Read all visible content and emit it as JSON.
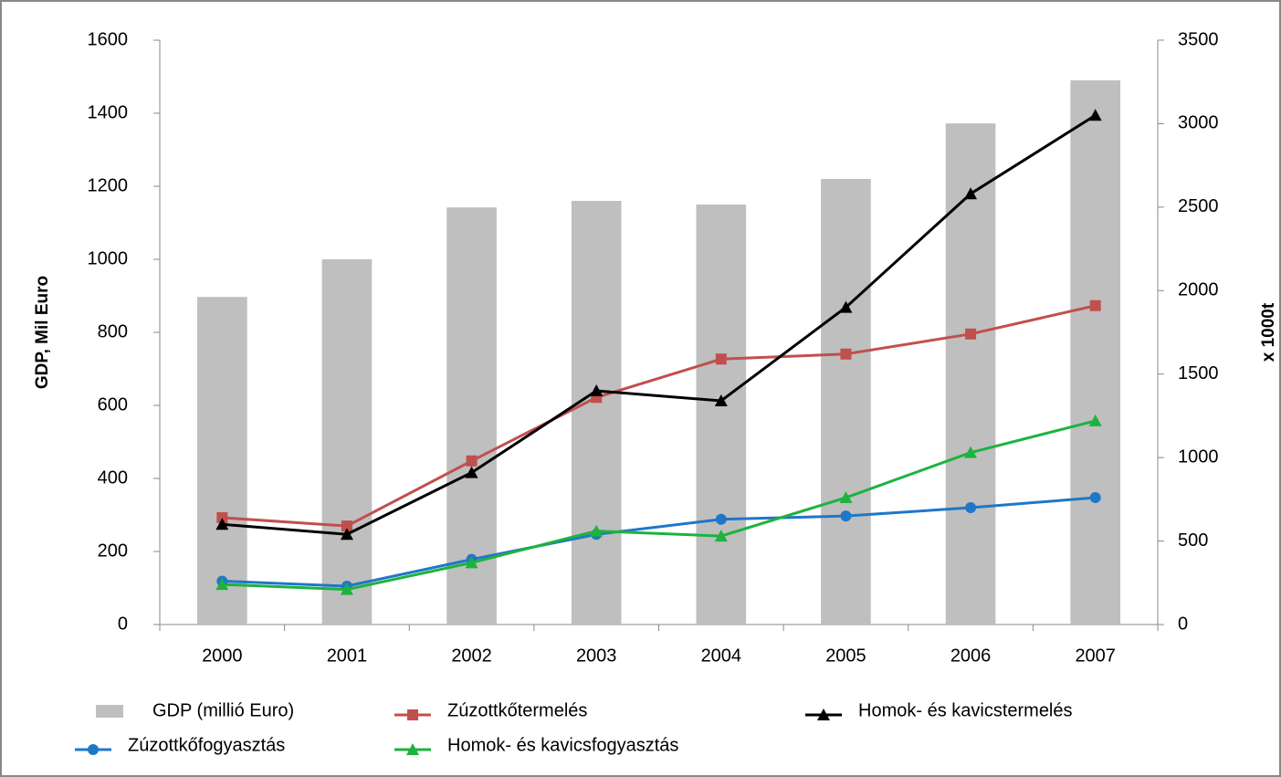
{
  "chart_data": {
    "type": "bar-line",
    "ylabel": "GDP, Mil Euro",
    "y2label": "x 1000t",
    "categories": [
      "2000",
      "2001",
      "2002",
      "2003",
      "2004",
      "2005",
      "2006",
      "2007"
    ],
    "ylim": [
      0,
      1600
    ],
    "yticks": [
      0,
      200,
      400,
      600,
      800,
      1000,
      1200,
      1400,
      1600
    ],
    "y2lim": [
      0,
      3500
    ],
    "y2ticks": [
      0,
      500,
      1000,
      1500,
      2000,
      2500,
      3000,
      3500
    ],
    "series": [
      {
        "name": "GDP (millió Euro)",
        "type": "bar",
        "color": "#bfbfbf",
        "values": [
          897,
          1000,
          1142,
          1160,
          1150,
          1220,
          1372,
          1490
        ]
      },
      {
        "name": "Zúzottkőtermelés",
        "type": "line",
        "marker": "square",
        "axis": "y2",
        "color": "#c0504d",
        "values": [
          640,
          590,
          980,
          1360,
          1590,
          1620,
          1740,
          1910
        ]
      },
      {
        "name": "Homok- és kavicstermelés",
        "type": "line",
        "marker": "triangle",
        "axis": "y2",
        "color": "#000000",
        "values": [
          600,
          540,
          910,
          1400,
          1340,
          1900,
          2580,
          3050
        ]
      },
      {
        "name": "Zúzottkőfogyasztás",
        "type": "line",
        "marker": "circle",
        "axis": "y2",
        "color": "#1f77c8",
        "values": [
          260,
          230,
          390,
          540,
          630,
          650,
          700,
          760
        ]
      },
      {
        "name": "Homok- és kavicsfogyasztás",
        "type": "line",
        "marker": "triangle",
        "axis": "y2",
        "color": "#1db33e",
        "values": [
          240,
          210,
          370,
          560,
          530,
          760,
          1030,
          1220
        ]
      }
    ]
  }
}
